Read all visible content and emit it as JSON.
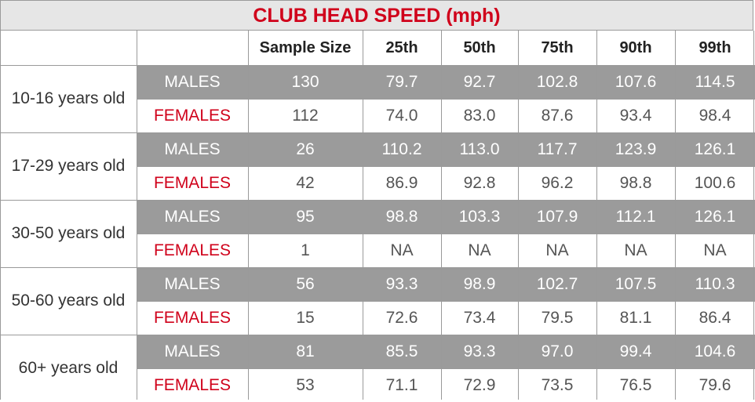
{
  "chart_data": {
    "type": "table",
    "title": "CLUB HEAD SPEED (mph)",
    "columns": [
      "Sample Size",
      "25th",
      "50th",
      "75th",
      "90th",
      "99th"
    ],
    "sex_labels": {
      "male": "MALES",
      "female": "FEMALES"
    },
    "groups": [
      {
        "label": "10-16 years old",
        "males": [
          "130",
          "79.7",
          "92.7",
          "102.8",
          "107.6",
          "114.5"
        ],
        "females": [
          "112",
          "74.0",
          "83.0",
          "87.6",
          "93.4",
          "98.4"
        ]
      },
      {
        "label": "17-29 years old",
        "males": [
          "26",
          "110.2",
          "113.0",
          "117.7",
          "123.9",
          "126.1"
        ],
        "females": [
          "42",
          "86.9",
          "92.8",
          "96.2",
          "98.8",
          "100.6"
        ]
      },
      {
        "label": "30-50 years old",
        "males": [
          "95",
          "98.8",
          "103.3",
          "107.9",
          "112.1",
          "126.1"
        ],
        "females": [
          "1",
          "NA",
          "NA",
          "NA",
          "NA",
          "NA"
        ]
      },
      {
        "label": "50-60 years old",
        "males": [
          "56",
          "93.3",
          "98.9",
          "102.7",
          "107.5",
          "110.3"
        ],
        "females": [
          "15",
          "72.6",
          "73.4",
          "79.5",
          "81.1",
          "86.4"
        ]
      },
      {
        "label": "60+ years old",
        "males": [
          "81",
          "85.5",
          "93.3",
          "97.0",
          "99.4",
          "104.6"
        ],
        "females": [
          "53",
          "71.1",
          "72.9",
          "73.5",
          "76.5",
          "79.6"
        ]
      }
    ],
    "colors": {
      "title": "#d0021b",
      "male_row": "#9b9b9b",
      "female_label": "#d0021b",
      "header_bg": "#e6e6e6"
    }
  }
}
